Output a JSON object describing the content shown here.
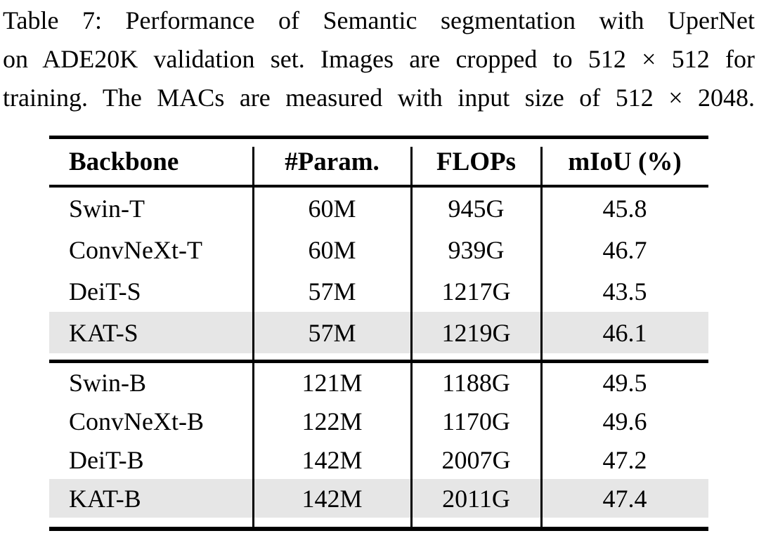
{
  "caption": {
    "lines": [
      "Table 7: Performance of Semantic segmentation with UperNet",
      "on ADE20K validation set. Images are cropped to 512 × 512 for",
      "training. The MACs are measured with input size of 512 × 2048."
    ]
  },
  "table": {
    "columns": [
      "Backbone",
      "#Param.",
      "FLOPs",
      "mIoU (%)"
    ],
    "groups": [
      {
        "rows": [
          {
            "backbone": "Swin-T",
            "params": "60M",
            "flops": "945G",
            "miou": "45.8",
            "highlight": false
          },
          {
            "backbone": "ConvNeXt-T",
            "params": "60M",
            "flops": "939G",
            "miou": "46.7",
            "highlight": false
          },
          {
            "backbone": "DeiT-S",
            "params": "57M",
            "flops": "1217G",
            "miou": "43.5",
            "highlight": false
          },
          {
            "backbone": "KAT-S",
            "params": "57M",
            "flops": "1219G",
            "miou": "46.1",
            "highlight": true
          }
        ]
      },
      {
        "rows": [
          {
            "backbone": "Swin-B",
            "params": "121M",
            "flops": "1188G",
            "miou": "49.5",
            "highlight": false
          },
          {
            "backbone": "ConvNeXt-B",
            "params": "122M",
            "flops": "1170G",
            "miou": "49.6",
            "highlight": false
          },
          {
            "backbone": "DeiT-B",
            "params": "142M",
            "flops": "2007G",
            "miou": "47.2",
            "highlight": false
          },
          {
            "backbone": "KAT-B",
            "params": "142M",
            "flops": "2011G",
            "miou": "47.4",
            "highlight": true
          }
        ]
      }
    ]
  },
  "colors": {
    "highlight": "#e6e6e6",
    "rule": "#000000",
    "text": "#000000",
    "background": "#ffffff"
  }
}
